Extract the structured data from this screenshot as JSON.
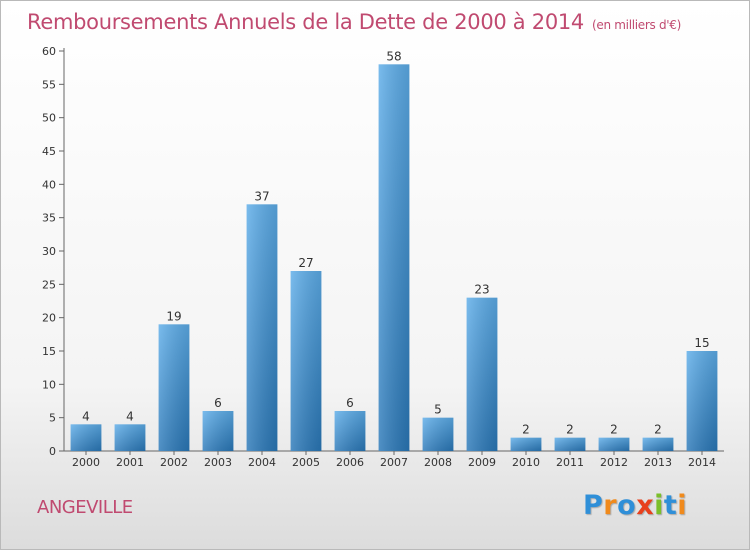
{
  "chart_data": {
    "type": "bar",
    "title": "Remboursements Annuels de la Dette de 2000 à 2014",
    "subtitle": "(en milliers d'€)",
    "categories": [
      "2000",
      "2001",
      "2002",
      "2003",
      "2004",
      "2005",
      "2006",
      "2007",
      "2008",
      "2009",
      "2010",
      "2011",
      "2012",
      "2013",
      "2014"
    ],
    "values": [
      4,
      4,
      19,
      6,
      37,
      27,
      6,
      58,
      5,
      23,
      2,
      2,
      2,
      2,
      15
    ],
    "ylim": [
      0,
      60
    ],
    "yticks": [
      0,
      5,
      10,
      15,
      20,
      25,
      30,
      35,
      40,
      45,
      50,
      55,
      60
    ],
    "grid": false,
    "bar_color_top": "#5dade9",
    "bar_color_bottom": "#2a78b8"
  },
  "footer": {
    "city": "ANGEVILLE",
    "logo": {
      "letters": [
        "P",
        "r",
        "o",
        "x",
        "i",
        "t",
        "i"
      ],
      "colors": [
        "#2f8fd8",
        "#f08a1c",
        "#2f8fd8",
        "#e8401c",
        "#7bbf2a",
        "#2f8fd8",
        "#f08a1c"
      ]
    }
  }
}
